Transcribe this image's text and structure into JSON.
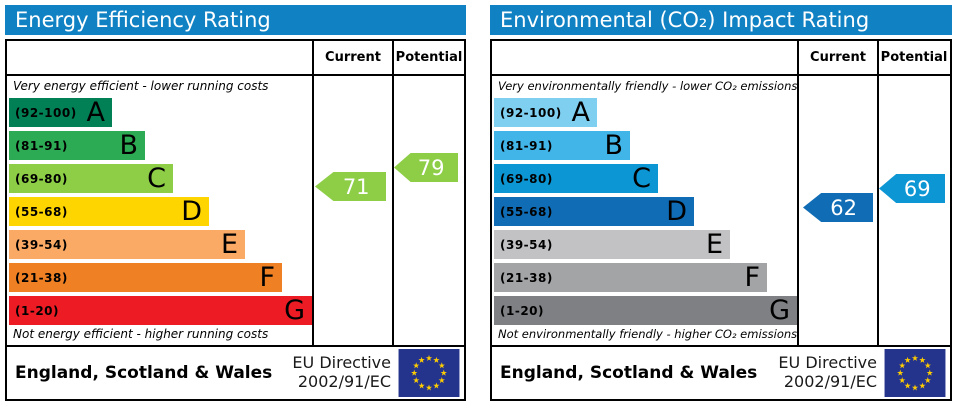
{
  "header_color": "#1082c4",
  "eu_flag": {
    "field_color": "#24348c",
    "star_color": "#ffcc00"
  },
  "panels": [
    {
      "title": "Energy Efficiency Rating",
      "columns": {
        "current": "Current",
        "potential": "Potential"
      },
      "top_note": "Very energy efficient - lower running costs",
      "bottom_note": "Not energy efficient - higher running costs",
      "bands": [
        {
          "range": "(92-100)",
          "letter": "A",
          "color": "#008054",
          "width_pct": 34
        },
        {
          "range": "(81-91)",
          "letter": "B",
          "color": "#2dab54",
          "width_pct": 45
        },
        {
          "range": "(69-80)",
          "letter": "C",
          "color": "#8dce46",
          "width_pct": 54
        },
        {
          "range": "(55-68)",
          "letter": "D",
          "color": "#ffd500",
          "width_pct": 66
        },
        {
          "range": "(39-54)",
          "letter": "E",
          "color": "#fbaa65",
          "width_pct": 78
        },
        {
          "range": "(21-38)",
          "letter": "F",
          "color": "#ef8023",
          "width_pct": 90
        },
        {
          "range": "(1-20)",
          "letter": "G",
          "color": "#ed1c24",
          "width_pct": 100
        }
      ],
      "current": {
        "value": "71",
        "color": "#8dce46"
      },
      "potential": {
        "value": "79",
        "color": "#8dce46"
      },
      "footer": {
        "region": "England, Scotland & Wales",
        "directive_line1": "EU Directive",
        "directive_line2": "2002/91/EC"
      }
    },
    {
      "title": "Environmental (CO₂) Impact Rating",
      "columns": {
        "current": "Current",
        "potential": "Potential"
      },
      "top_note": "Very environmentally friendly - lower CO₂ emissions",
      "bottom_note": "Not environmentally friendly - higher CO₂ emissions",
      "bands": [
        {
          "range": "(92-100)",
          "letter": "A",
          "color": "#7fd0f0",
          "width_pct": 34
        },
        {
          "range": "(81-91)",
          "letter": "B",
          "color": "#42b5e8",
          "width_pct": 45
        },
        {
          "range": "(69-80)",
          "letter": "C",
          "color": "#0c96d4",
          "width_pct": 54
        },
        {
          "range": "(55-68)",
          "letter": "D",
          "color": "#0f6cb5",
          "width_pct": 66
        },
        {
          "range": "(39-54)",
          "letter": "E",
          "color": "#c2c2c4",
          "width_pct": 78
        },
        {
          "range": "(21-38)",
          "letter": "F",
          "color": "#a3a4a6",
          "width_pct": 90
        },
        {
          "range": "(1-20)",
          "letter": "G",
          "color": "#7f8084",
          "width_pct": 100
        }
      ],
      "current": {
        "value": "62",
        "color": "#0f6cb5"
      },
      "potential": {
        "value": "69",
        "color": "#0c96d4"
      },
      "footer": {
        "region": "England, Scotland & Wales",
        "directive_line1": "EU Directive",
        "directive_line2": "2002/91/EC"
      }
    }
  ],
  "chart_data": [
    {
      "type": "bar",
      "title": "Energy Efficiency Rating",
      "categories": [
        "A",
        "B",
        "C",
        "D",
        "E",
        "F",
        "G"
      ],
      "band_ranges": [
        "92-100",
        "81-91",
        "69-80",
        "55-68",
        "39-54",
        "21-38",
        "1-20"
      ],
      "band_colors": [
        "#008054",
        "#2dab54",
        "#8dce46",
        "#ffd500",
        "#fbaa65",
        "#ef8023",
        "#ed1c24"
      ],
      "bar_lengths_pct": [
        34,
        45,
        54,
        66,
        78,
        90,
        100
      ],
      "current": 71,
      "current_band": "C",
      "potential": 79,
      "potential_band": "C",
      "scale": [
        1,
        100
      ],
      "note_top": "Very energy efficient - lower running costs",
      "note_bottom": "Not energy efficient - higher running costs",
      "region": "England, Scotland & Wales",
      "directive": "EU Directive 2002/91/EC"
    },
    {
      "type": "bar",
      "title": "Environmental (CO₂) Impact Rating",
      "categories": [
        "A",
        "B",
        "C",
        "D",
        "E",
        "F",
        "G"
      ],
      "band_ranges": [
        "92-100",
        "81-91",
        "69-80",
        "55-68",
        "39-54",
        "21-38",
        "1-20"
      ],
      "band_colors": [
        "#7fd0f0",
        "#42b5e8",
        "#0c96d4",
        "#0f6cb5",
        "#c2c2c4",
        "#a3a4a6",
        "#7f8084"
      ],
      "bar_lengths_pct": [
        34,
        45,
        54,
        66,
        78,
        90,
        100
      ],
      "current": 62,
      "current_band": "D",
      "potential": 69,
      "potential_band": "C",
      "scale": [
        1,
        100
      ],
      "note_top": "Very environmentally friendly - lower CO₂ emissions",
      "note_bottom": "Not environmentally friendly - higher CO₂ emissions",
      "region": "England, Scotland & Wales",
      "directive": "EU Directive 2002/91/EC"
    }
  ]
}
